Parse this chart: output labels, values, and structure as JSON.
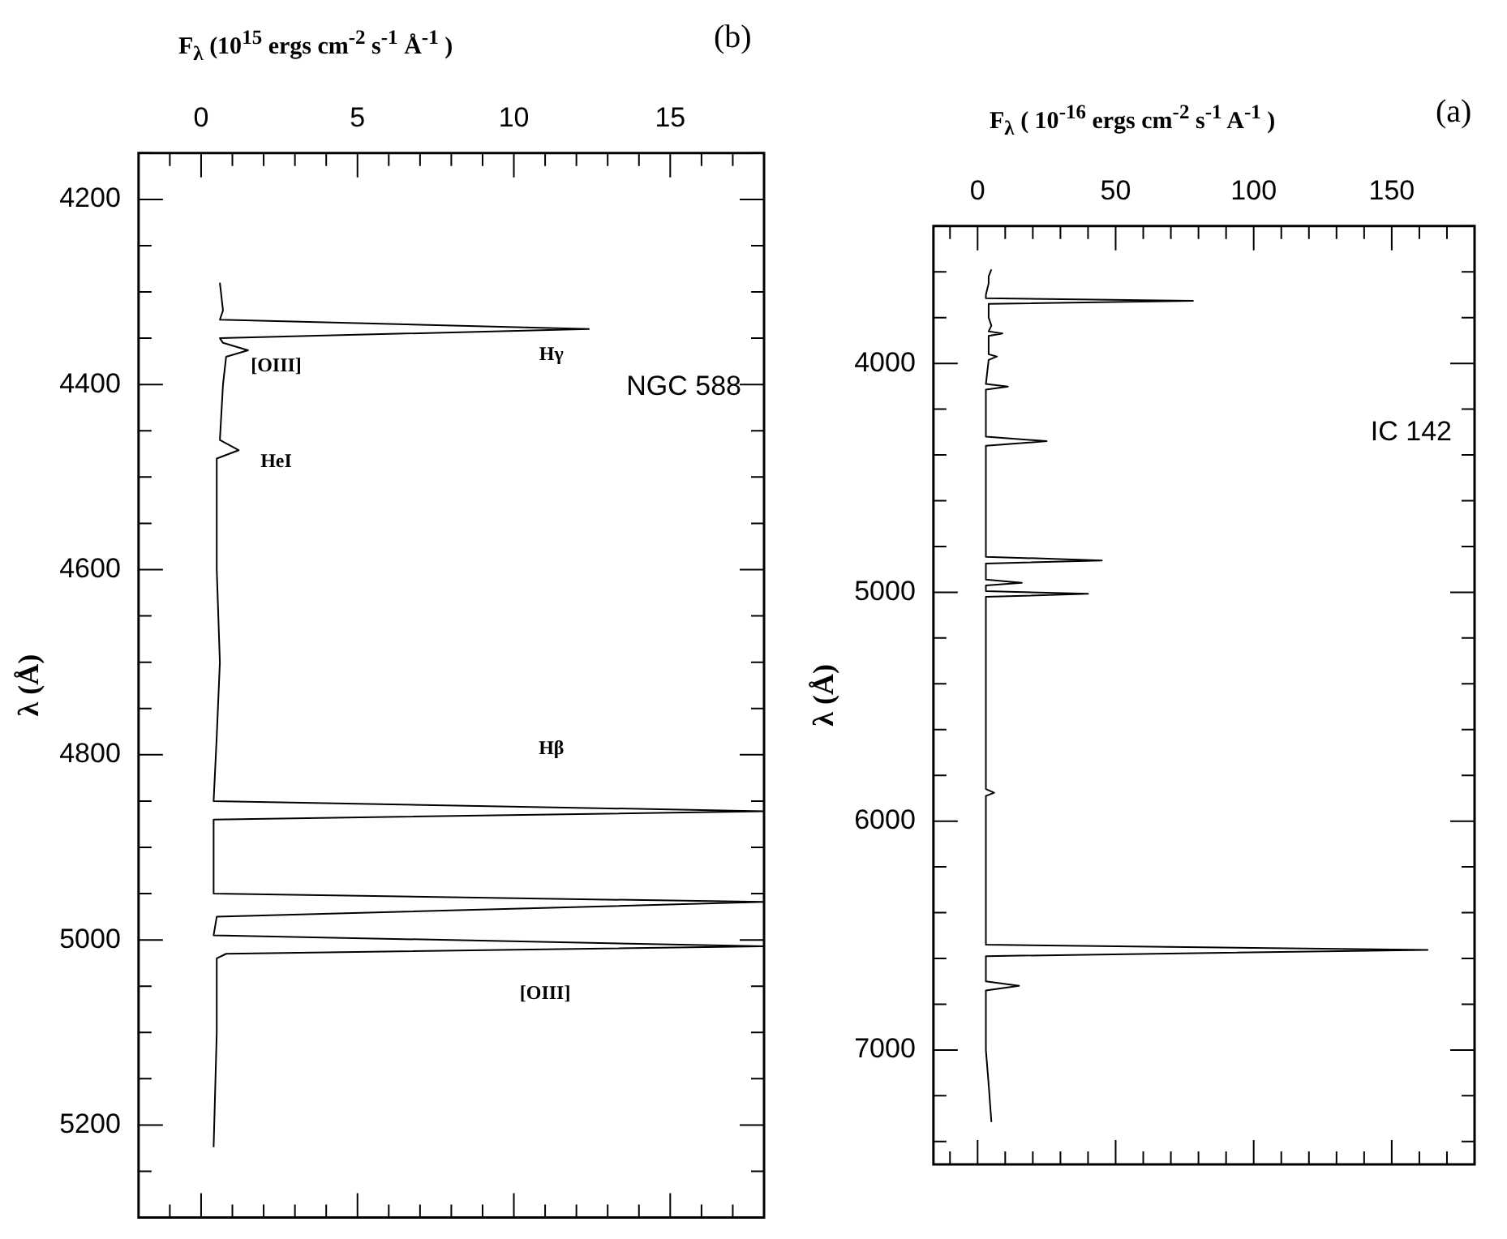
{
  "chart_data": [
    {
      "type": "line",
      "title": "IC 142",
      "ylabel": "λ (Å)",
      "xlabel": "F$_{λ}$ ( 10$^{-16}$ ergs cm$^{-2}$ s$^{-1}$ A$^{-1}$ )",
      "color": "#000000",
      "values": [
        3590,
        3620,
        3650,
        3700,
        3715,
        3727,
        3740,
        3800,
        3835,
        3860,
        3869,
        3880,
        3960,
        3970,
        3985,
        4090,
        4101,
        4115,
        4320,
        4340,
        4360,
        4845,
        4861,
        4875,
        4945,
        4959,
        4970,
        4995,
        5007,
        5020,
        5860,
        5876,
        5890,
        6540,
        6563,
        6590,
        6700,
        6720,
        6740,
        7000,
        7150,
        7315
      ],
      "x": [
        5,
        4,
        4,
        3,
        3,
        78,
        4,
        4,
        5,
        4,
        9,
        4,
        4,
        7,
        4,
        3,
        11,
        3,
        3,
        25,
        3,
        3,
        45,
        3,
        3,
        16,
        3,
        3,
        40,
        3,
        3,
        6,
        3,
        3,
        163,
        3,
        3,
        15,
        3,
        3,
        4,
        5
      ],
      "ylim": [
        7500,
        3400
      ],
      "yticks": [
        {
          "value": 3400,
          "label": null
        },
        {
          "value": 3600,
          "label": null
        },
        {
          "value": 3800,
          "label": null
        },
        4000,
        {
          "value": 4200,
          "label": null
        },
        {
          "value": 4400,
          "label": null
        },
        {
          "value": 4600,
          "label": null
        },
        {
          "value": 4800,
          "label": null
        },
        5000,
        {
          "value": 5200,
          "label": null
        },
        {
          "value": 5400,
          "label": null
        },
        {
          "value": 5600,
          "label": null
        },
        {
          "value": 5800,
          "label": null
        },
        6000,
        {
          "value": 6200,
          "label": null
        },
        {
          "value": 6400,
          "label": null
        },
        {
          "value": 6600,
          "label": null
        },
        {
          "value": 6800,
          "label": null
        },
        7000,
        {
          "value": 7200,
          "label": null
        },
        {
          "value": 7400,
          "label": null
        }
      ],
      "xlim": [
        -16,
        180
      ],
      "xticks": [
        {
          "value": -10,
          "label": null
        },
        0,
        {
          "value": 10,
          "label": null
        },
        {
          "value": 20,
          "label": null
        },
        {
          "value": 30,
          "label": null
        },
        {
          "value": 40,
          "label": null
        },
        50,
        {
          "value": 60,
          "label": null
        },
        {
          "value": 70,
          "label": null
        },
        {
          "value": 80,
          "label": null
        },
        {
          "value": 90,
          "label": null
        },
        100,
        {
          "value": 110,
          "label": null
        },
        {
          "value": 120,
          "label": null
        },
        {
          "value": 130,
          "label": null
        },
        {
          "value": 140,
          "label": null
        },
        150,
        {
          "value": 160,
          "label": null
        },
        {
          "value": 170,
          "label": null
        }
      ],
      "annotations": [
        "(a)"
      ]
    },
    {
      "type": "line",
      "title": "NGC 588",
      "ylabel": "λ (Å)",
      "xlabel": "F$_{λ}$ (10$^{15}$ ergs cm$^{-2}$ s$^{-1}$ Å$^{-1}$ )",
      "color": "#000000",
      "values": [
        4290,
        4320,
        4330,
        4340,
        4350,
        4355,
        4363,
        4370,
        4400,
        4460,
        4471,
        4480,
        4600,
        4700,
        4780,
        4850,
        4861,
        4870,
        4950,
        4959,
        4975,
        4995,
        5007,
        5015,
        5020,
        5100,
        5224
      ],
      "x": [
        0.6,
        0.7,
        0.6,
        12.4,
        0.6,
        0.7,
        1.5,
        0.8,
        0.7,
        0.6,
        1.2,
        0.5,
        0.5,
        0.6,
        0.5,
        0.4,
        18,
        0.4,
        0.4,
        18,
        0.5,
        0.4,
        18,
        0.8,
        0.5,
        0.5,
        0.4
      ],
      "ylim": [
        5300,
        4150
      ],
      "yticks": [
        {
          "value": 4150,
          "label": null
        },
        4200,
        {
          "value": 4250,
          "label": null
        },
        {
          "value": 4300,
          "label": null
        },
        {
          "value": 4350,
          "label": null
        },
        4400,
        {
          "value": 4450,
          "label": null
        },
        {
          "value": 4500,
          "label": null
        },
        {
          "value": 4550,
          "label": null
        },
        4600,
        {
          "value": 4650,
          "label": null
        },
        {
          "value": 4700,
          "label": null
        },
        {
          "value": 4750,
          "label": null
        },
        4800,
        {
          "value": 4850,
          "label": null
        },
        {
          "value": 4900,
          "label": null
        },
        {
          "value": 4950,
          "label": null
        },
        5000,
        {
          "value": 5050,
          "label": null
        },
        {
          "value": 5100,
          "label": null
        },
        {
          "value": 5150,
          "label": null
        },
        5200,
        {
          "value": 5250,
          "label": null
        },
        {
          "value": 5300,
          "label": null
        }
      ],
      "xlim": [
        -2,
        18
      ],
      "xticks": [
        {
          "value": -1,
          "label": null
        },
        0,
        {
          "value": 1,
          "label": null
        },
        {
          "value": 2,
          "label": null
        },
        {
          "value": 3,
          "label": null
        },
        {
          "value": 4,
          "label": null
        },
        5,
        {
          "value": 6,
          "label": null
        },
        {
          "value": 7,
          "label": null
        },
        {
          "value": 8,
          "label": null
        },
        {
          "value": 9,
          "label": null
        },
        10,
        {
          "value": 11,
          "label": null
        },
        {
          "value": 12,
          "label": null
        },
        {
          "value": 13,
          "label": null
        },
        {
          "value": 14,
          "label": null
        },
        15,
        {
          "value": 16,
          "label": null
        },
        {
          "value": 17,
          "label": null
        }
      ],
      "annotations": [
        "(b)",
        "Hγ",
        "[OIII]",
        "HeI",
        "Hβ",
        "[OIII]"
      ]
    }
  ]
}
